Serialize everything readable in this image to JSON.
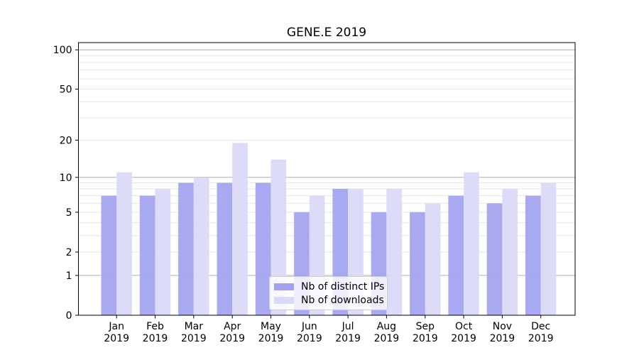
{
  "chart_data": {
    "type": "bar",
    "title": "GENE.E 2019",
    "categories": [
      "Jan 2019",
      "Feb 2019",
      "Mar 2019",
      "Apr 2019",
      "May 2019",
      "Jun 2019",
      "Jul 2019",
      "Aug 2019",
      "Sep 2019",
      "Oct 2019",
      "Nov 2019",
      "Dec 2019"
    ],
    "series": [
      {
        "name": "Nb of distinct IPs",
        "color": "#a2a2f0",
        "values": [
          7,
          7,
          9,
          9,
          9,
          5,
          8,
          5,
          5,
          7,
          6,
          7
        ]
      },
      {
        "name": "Nb of downloads",
        "color": "#d9d9f8",
        "values": [
          11,
          8,
          10,
          19,
          14,
          7,
          8,
          8,
          6,
          11,
          8,
          9
        ]
      }
    ],
    "xlabel": "",
    "ylabel": "",
    "yscale": "log1p",
    "ylim": [
      0,
      113
    ],
    "yticks": [
      0,
      1,
      2,
      5,
      10,
      20,
      50,
      100
    ],
    "yminorticks": [
      3,
      4,
      6,
      7,
      8,
      9,
      30,
      40,
      60,
      70,
      80,
      90
    ],
    "grid": true,
    "legend_position": "lower center"
  },
  "colors": {
    "grid_major": "#b0b0b0",
    "grid_minor": "#e6e6e6",
    "axis": "#000000",
    "background": "#ffffff",
    "legend_border": "#cccccc"
  }
}
